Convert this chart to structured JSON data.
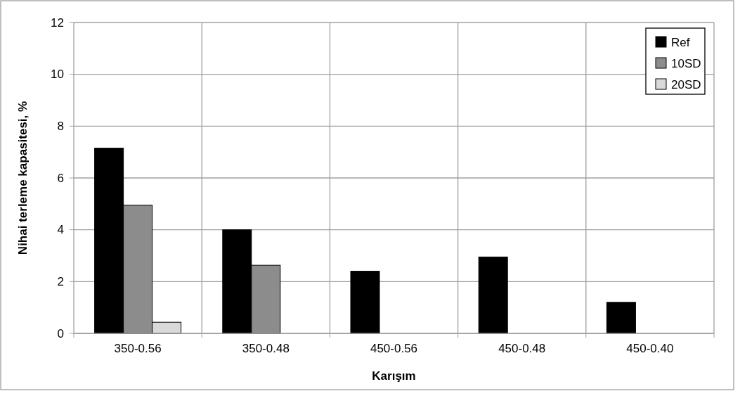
{
  "chart_data": {
    "type": "bar",
    "xlabel": "Karışım",
    "ylabel": "Nihai terleme kapasitesi, %",
    "categories": [
      "350-0.56",
      "350-0.48",
      "450-0.56",
      "450-0.48",
      "450-0.40"
    ],
    "series": [
      {
        "name": "Ref",
        "color": "#000000",
        "values": [
          7.15,
          4.0,
          2.4,
          2.95,
          1.2
        ]
      },
      {
        "name": "10SD",
        "color": "#8c8c8c",
        "values": [
          4.95,
          2.63,
          null,
          null,
          null
        ]
      },
      {
        "name": "20SD",
        "color": "#d9d9d9",
        "values": [
          0.43,
          null,
          null,
          null,
          null
        ]
      }
    ],
    "ylim": [
      0,
      12
    ],
    "yticks": [
      0,
      2,
      4,
      6,
      8,
      10,
      12
    ],
    "grid": true,
    "legend": "top right"
  }
}
